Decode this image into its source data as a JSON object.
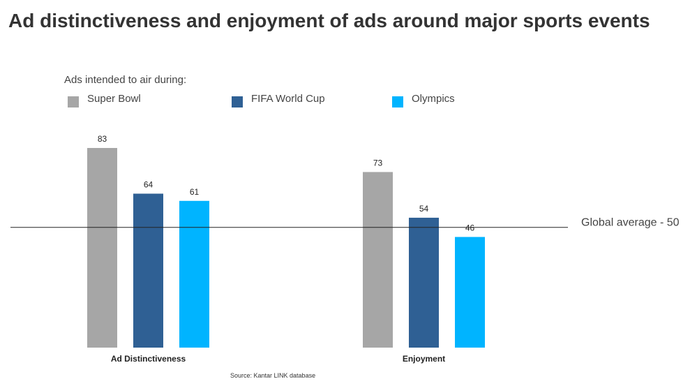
{
  "chart_data": {
    "type": "bar",
    "title": "Ad distinctiveness and enjoyment of ads around major sports events",
    "legend_title": "Ads intended to air during:",
    "legend_position": "top-left",
    "categories": [
      "Ad Distinctiveness",
      "Enjoyment"
    ],
    "series": [
      {
        "name": "Super Bowl",
        "color": "#a6a6a6",
        "values": [
          83,
          73
        ]
      },
      {
        "name": "FIFA World Cup",
        "color": "#2f6094",
        "values": [
          64,
          54
        ]
      },
      {
        "name": "Olympics",
        "color": "#00b4ff",
        "values": [
          61,
          46
        ]
      }
    ],
    "reference_line": {
      "value": 50,
      "label": "Global average - 50"
    },
    "ylim": [
      0,
      83
    ],
    "grid": false,
    "source": "Source: Kantar LINK database"
  }
}
